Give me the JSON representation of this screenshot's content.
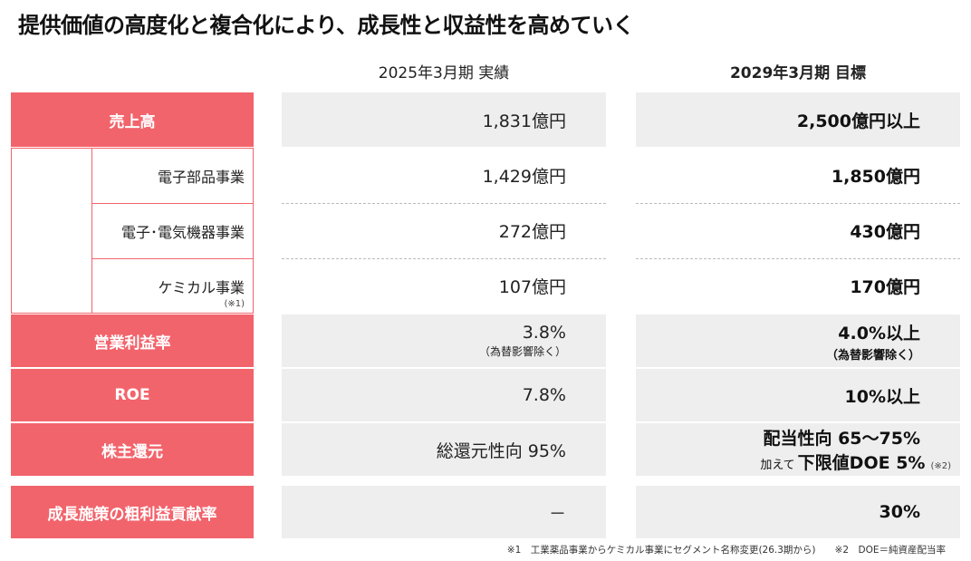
{
  "title": "提供価値の高度化と複合化により、成長性と収益性を高めていく",
  "columns": {
    "actual": "2025年3月期 実績",
    "target": "2029年3月期 目標"
  },
  "rows": {
    "sales": {
      "label": "売上高",
      "actual": "1,831億円",
      "target": "2,500億円以上"
    },
    "electronic_parts": {
      "label": "電子部品事業",
      "actual": "1,429億円",
      "target": "1,850億円"
    },
    "electrical_equipment": {
      "label": "電子･電気機器事業",
      "actual": "272億円",
      "target": "430億円"
    },
    "chemical": {
      "label": "ケミカル事業",
      "note": "(※1)",
      "actual": "107億円",
      "target": "170億円"
    },
    "operating_margin": {
      "label": "営業利益率",
      "actual": "3.8%",
      "actual_note": "（為替影響除く）",
      "target": "4.0%以上",
      "target_note": "（為替影響除く）"
    },
    "roe": {
      "label": "ROE",
      "actual": "7.8%",
      "target": "10%以上"
    },
    "shareholder_return": {
      "label": "株主還元",
      "actual": "総還元性向 95%",
      "target_line1": "配当性向 65～75%",
      "target_prefix": "加えて",
      "target_line2": "下限値DOE 5%",
      "target_mark": "(※2)"
    },
    "growth_margin": {
      "label": "成長施策の粗利益貢献率",
      "actual": "－",
      "target": "30%"
    }
  },
  "footnotes": "※1　工業薬品事業からケミカル事業にセグメント名称変更(26.3期から)　　※2　DOE＝純資産配当率",
  "colors": {
    "accent": "#f2646c",
    "cell_bg": "#eeeeee"
  }
}
